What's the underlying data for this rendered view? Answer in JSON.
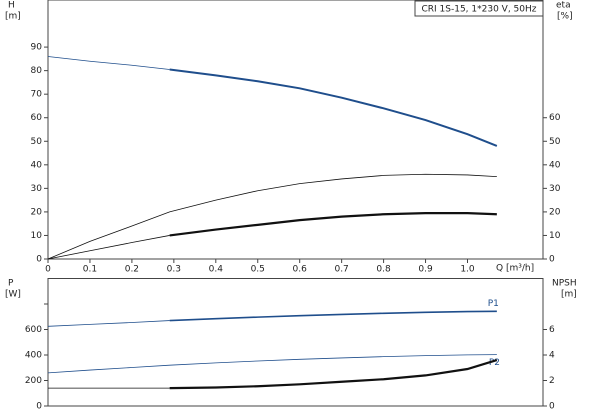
{
  "chart_data": [
    {
      "type": "line",
      "caption": "CRI 1S-15, 1*230 V, 50Hz",
      "ylabel": "H",
      "yunit": "[m]",
      "y2label": "eta",
      "y2unit": "[%]",
      "xlabel": "Q [m³/h]",
      "x": [
        0,
        0.1,
        0.2,
        0.29,
        0.4,
        0.5,
        0.6,
        0.7,
        0.8,
        0.9,
        1.0,
        1.07
      ],
      "xlim": [
        0,
        1.18
      ],
      "xticks": [
        0,
        0.1,
        0.2,
        0.3,
        0.4,
        0.5,
        0.6,
        0.7,
        0.8,
        0.9,
        {
          "value": 1,
          "label": "1.0"
        }
      ],
      "ylim": [
        0,
        110
      ],
      "yticks": [
        0,
        10,
        20,
        30,
        40,
        50,
        60,
        70,
        80,
        90
      ],
      "y2lim": [
        0,
        110
      ],
      "y2ticks": [
        0,
        10,
        20,
        30,
        40,
        50,
        60
      ],
      "series": [
        {
          "color": "#1f4e8c",
          "linewidth": 0.8,
          "values": [
            86,
            84,
            82.3,
            80.5,
            null,
            null,
            null,
            null,
            null,
            null,
            null,
            null
          ]
        },
        {
          "color": "#1f4e8c",
          "linewidth": 2,
          "values": [
            null,
            null,
            null,
            80.5,
            78,
            75.5,
            72.5,
            68.5,
            64,
            59,
            53,
            48
          ]
        },
        {
          "color": "#111111",
          "linewidth": 0.8,
          "axis": "y2",
          "values": [
            0,
            7.5,
            14,
            20,
            25,
            29,
            32,
            34,
            35.5,
            36,
            35.7,
            35
          ]
        },
        {
          "color": "#111111",
          "linewidth": 0.8,
          "axis": "y2",
          "values": [
            0,
            3.5,
            7,
            10,
            null,
            null,
            null,
            null,
            null,
            null,
            null,
            null
          ]
        },
        {
          "color": "#111111",
          "linewidth": 2.2,
          "axis": "y2",
          "values": [
            null,
            null,
            null,
            10,
            12.5,
            14.5,
            16.5,
            18,
            19,
            19.5,
            19.5,
            19
          ]
        }
      ]
    },
    {
      "type": "line",
      "ylabel": "P",
      "yunit": "[W]",
      "y2label": "NPSH",
      "y2unit": "[m]",
      "x": [
        0,
        0.1,
        0.2,
        0.29,
        0.4,
        0.5,
        0.6,
        0.7,
        0.8,
        0.9,
        1.0,
        1.07
      ],
      "xlim": [
        0,
        1.18
      ],
      "ylim": [
        0,
        1000
      ],
      "yticks": [
        0,
        200,
        400,
        600,
        {
          "value": 800,
          "label": null
        }
      ],
      "y2lim": [
        0,
        10
      ],
      "y2ticks": [
        0,
        2,
        4,
        6
      ],
      "series": [
        {
          "color": "#1f4e8c",
          "linewidth": 0.8,
          "values": [
            625,
            640,
            655,
            670,
            null,
            null,
            null,
            null,
            null,
            null,
            null,
            null
          ]
        },
        {
          "name": "P1",
          "color": "#1f4e8c",
          "linewidth": 1.6,
          "values": [
            null,
            null,
            null,
            670,
            685,
            697,
            708,
            718,
            727,
            735,
            741,
            743
          ]
        },
        {
          "name": "P2",
          "color": "#1f4e8c",
          "linewidth": 0.8,
          "values": [
            260,
            282,
            302,
            320,
            338,
            353,
            366,
            377,
            387,
            395,
            401,
            403
          ]
        },
        {
          "color": "#111111",
          "linewidth": 0.8,
          "axis": "y2",
          "values": [
            1.4,
            1.4,
            1.4,
            1.4,
            null,
            null,
            null,
            null,
            null,
            null,
            null,
            null
          ]
        },
        {
          "color": "#111111",
          "linewidth": 2.2,
          "axis": "y2",
          "values": [
            null,
            null,
            null,
            1.4,
            1.45,
            1.55,
            1.7,
            1.9,
            2.1,
            2.4,
            2.9,
            3.6
          ]
        }
      ]
    }
  ]
}
